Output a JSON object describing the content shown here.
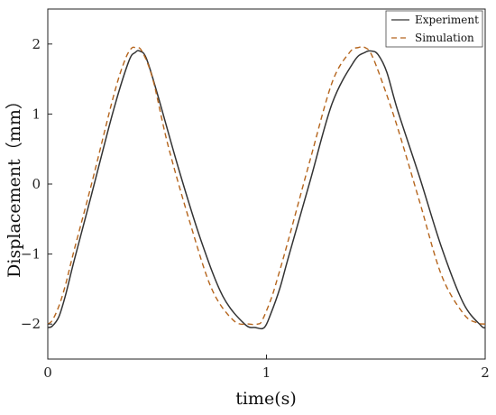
{
  "chart_data": {
    "type": "line",
    "xlabel": "time(s)",
    "ylabel": "Displacement（mm）",
    "xlim": [
      0,
      2
    ],
    "ylim": [
      -2.5,
      2.5
    ],
    "x_ticks": [
      0,
      1,
      2
    ],
    "x_tick_labels": [
      "0",
      "1",
      "2"
    ],
    "y_ticks": [
      -2,
      -1,
      0,
      1,
      2
    ],
    "y_tick_labels": [
      "−2",
      "−1",
      "0",
      "1",
      "2"
    ],
    "grid": false,
    "legend_position": "top-right",
    "series": [
      {
        "name": "Experiment",
        "color": "#333333",
        "style": "solid",
        "x": [
          0,
          0.02,
          0.05,
          0.08,
          0.12,
          0.2,
          0.3,
          0.37,
          0.4,
          0.42,
          0.45,
          0.5,
          0.6,
          0.7,
          0.8,
          0.9,
          0.95,
          0.99,
          1.02,
          1.06,
          1.1,
          1.2,
          1.3,
          1.4,
          1.45,
          1.48,
          1.51,
          1.55,
          1.6,
          1.7,
          1.8,
          1.9,
          1.98,
          2.0
        ],
        "y": [
          -2.05,
          -2.03,
          -1.9,
          -1.6,
          -1.1,
          -0.15,
          1.05,
          1.75,
          1.88,
          1.9,
          1.8,
          1.3,
          0.2,
          -0.8,
          -1.6,
          -2.0,
          -2.05,
          -2.05,
          -1.85,
          -1.5,
          -1.05,
          0.05,
          1.15,
          1.75,
          1.88,
          1.9,
          1.85,
          1.6,
          1.05,
          0.1,
          -0.9,
          -1.7,
          -2.02,
          -2.05
        ]
      },
      {
        "name": "Simulation",
        "color": "#b5651d",
        "style": "dashed",
        "x": [
          0,
          0.02,
          0.05,
          0.08,
          0.12,
          0.2,
          0.3,
          0.35,
          0.38,
          0.4,
          0.43,
          0.48,
          0.55,
          0.65,
          0.75,
          0.85,
          0.92,
          0.96,
          0.98,
          1.02,
          1.05,
          1.1,
          1.2,
          1.3,
          1.38,
          1.42,
          1.45,
          1.48,
          1.53,
          1.6,
          1.7,
          1.8,
          1.9,
          1.96,
          2.0
        ],
        "y": [
          -2.0,
          -1.95,
          -1.75,
          -1.45,
          -0.95,
          0.0,
          1.25,
          1.75,
          1.93,
          1.95,
          1.9,
          1.5,
          0.55,
          -0.55,
          -1.5,
          -1.95,
          -2.0,
          -2.0,
          -1.95,
          -1.65,
          -1.35,
          -0.8,
          0.35,
          1.45,
          1.88,
          1.95,
          1.95,
          1.85,
          1.45,
          0.8,
          -0.25,
          -1.3,
          -1.85,
          -1.98,
          -2.0
        ]
      }
    ]
  }
}
